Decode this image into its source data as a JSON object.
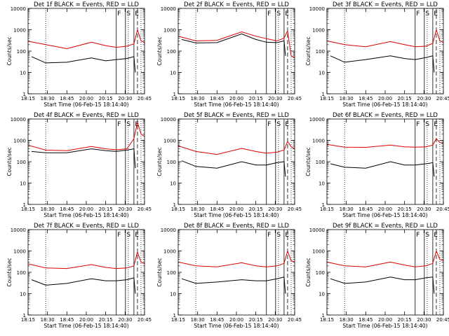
{
  "chart_data": {
    "type": "line",
    "layout": "3x3 grid",
    "xlabel": "Start Time (06-Feb-15 18:14:40)",
    "ylabel": "Counts/sec",
    "x_tick_labels": [
      "18:15",
      "18:30",
      "18:45",
      "20:00",
      "20:15",
      "20:30",
      "20:45"
    ],
    "y_tick_labels": [
      "1",
      "10",
      "100",
      "1000",
      "10000"
    ],
    "y_scale": "log",
    "ylim": [
      1,
      10000
    ],
    "xlim_min": [
      0,
      165
    ],
    "markers": {
      "solid_lines_min": [
        125,
        138,
        150
      ],
      "dotted_lines_min": [
        25,
        142,
        160
      ],
      "dashed_line_min": 155,
      "marker_labels": [
        "F",
        "S",
        "E"
      ]
    },
    "colors": {
      "events": "#000000",
      "lld": "#dd0000"
    },
    "panels": [
      {
        "title": "Det 1f BLACK = Events, RED = LLD",
        "series": [
          {
            "name": "Events",
            "color": "#000000",
            "values": [
              [
                5,
                55
              ],
              [
                25,
                28
              ],
              [
                55,
                30
              ],
              [
                90,
                48
              ],
              [
                110,
                35
              ],
              [
                125,
                40
              ],
              [
                140,
                45
              ],
              [
                150,
                55
              ],
              [
                152,
                10
              ]
            ]
          },
          {
            "name": "LLD",
            "color": "#dd0000",
            "values": [
              [
                0,
                290
              ],
              [
                25,
                200
              ],
              [
                55,
                130
              ],
              [
                90,
                260
              ],
              [
                110,
                180
              ],
              [
                125,
                150
              ],
              [
                140,
                170
              ],
              [
                150,
                220
              ],
              [
                155,
                1000
              ],
              [
                160,
                300
              ],
              [
                165,
                250
              ]
            ]
          }
        ]
      },
      {
        "title": "Det 2f BLACK = Events, RED = LLD",
        "series": [
          {
            "name": "Events",
            "color": "#000000",
            "values": [
              [
                5,
                350
              ],
              [
                25,
                240
              ],
              [
                55,
                250
              ],
              [
                90,
                640
              ],
              [
                110,
                350
              ],
              [
                125,
                260
              ],
              [
                140,
                250
              ],
              [
                150,
                300
              ],
              [
                152,
                60
              ]
            ]
          },
          {
            "name": "LLD",
            "color": "#dd0000",
            "values": [
              [
                0,
                500
              ],
              [
                25,
                300
              ],
              [
                55,
                320
              ],
              [
                90,
                800
              ],
              [
                110,
                500
              ],
              [
                125,
                380
              ],
              [
                140,
                300
              ],
              [
                150,
                400
              ],
              [
                155,
                900
              ],
              [
                160,
                60
              ],
              [
                165,
                50
              ]
            ]
          }
        ]
      },
      {
        "title": "Det 3f BLACK = Events, RED = LLD",
        "series": [
          {
            "name": "Events",
            "color": "#000000",
            "values": [
              [
                5,
                60
              ],
              [
                25,
                30
              ],
              [
                55,
                40
              ],
              [
                90,
                60
              ],
              [
                110,
                45
              ],
              [
                125,
                40
              ],
              [
                140,
                50
              ],
              [
                150,
                60
              ],
              [
                152,
                10
              ]
            ]
          },
          {
            "name": "LLD",
            "color": "#dd0000",
            "values": [
              [
                0,
                300
              ],
              [
                25,
                200
              ],
              [
                55,
                160
              ],
              [
                90,
                280
              ],
              [
                110,
                200
              ],
              [
                125,
                160
              ],
              [
                140,
                170
              ],
              [
                150,
                230
              ],
              [
                155,
                1000
              ],
              [
                160,
                300
              ],
              [
                165,
                250
              ]
            ]
          }
        ]
      },
      {
        "title": "Det 4f BLACK = Events, RED = LLD",
        "series": [
          {
            "name": "Events",
            "color": "#000000",
            "values": [
              [
                5,
                300
              ],
              [
                25,
                260
              ],
              [
                55,
                260
              ],
              [
                90,
                400
              ],
              [
                110,
                330
              ],
              [
                125,
                300
              ],
              [
                140,
                350
              ],
              [
                150,
                400
              ],
              [
                152,
                50
              ]
            ]
          },
          {
            "name": "LLD",
            "color": "#dd0000",
            "values": [
              [
                0,
                600
              ],
              [
                25,
                350
              ],
              [
                55,
                330
              ],
              [
                90,
                520
              ],
              [
                110,
                400
              ],
              [
                125,
                360
              ],
              [
                140,
                400
              ],
              [
                150,
                1200
              ],
              [
                155,
                7000
              ],
              [
                160,
                2000
              ],
              [
                165,
                1500
              ]
            ]
          }
        ]
      },
      {
        "title": "Det 5f BLACK = Events, RED = LLD",
        "series": [
          {
            "name": "Events",
            "color": "#000000",
            "values": [
              [
                5,
                110
              ],
              [
                25,
                60
              ],
              [
                55,
                50
              ],
              [
                90,
                100
              ],
              [
                110,
                70
              ],
              [
                125,
                70
              ],
              [
                140,
                90
              ],
              [
                150,
                100
              ],
              [
                152,
                20
              ]
            ]
          },
          {
            "name": "LLD",
            "color": "#dd0000",
            "values": [
              [
                0,
                550
              ],
              [
                25,
                300
              ],
              [
                55,
                220
              ],
              [
                90,
                420
              ],
              [
                110,
                300
              ],
              [
                125,
                250
              ],
              [
                140,
                280
              ],
              [
                150,
                350
              ],
              [
                155,
                900
              ],
              [
                160,
                500
              ],
              [
                165,
                400
              ]
            ]
          }
        ]
      },
      {
        "title": "Det 6f BLACK = Events, RED = LLD",
        "series": [
          {
            "name": "Events",
            "color": "#000000",
            "values": [
              [
                5,
                80
              ],
              [
                25,
                55
              ],
              [
                55,
                50
              ],
              [
                90,
                100
              ],
              [
                110,
                70
              ],
              [
                125,
                70
              ],
              [
                140,
                80
              ],
              [
                150,
                90
              ],
              [
                152,
                20
              ]
            ]
          },
          {
            "name": "LLD",
            "color": "#dd0000",
            "values": [
              [
                0,
                650
              ],
              [
                25,
                480
              ],
              [
                55,
                470
              ],
              [
                90,
                600
              ],
              [
                110,
                500
              ],
              [
                125,
                480
              ],
              [
                140,
                500
              ],
              [
                150,
                600
              ],
              [
                155,
                1200
              ],
              [
                160,
                800
              ],
              [
                165,
                700
              ]
            ]
          }
        ]
      },
      {
        "title": "Det 7f BLACK = Events, RED = LLD",
        "series": [
          {
            "name": "Events",
            "color": "#000000",
            "values": [
              [
                5,
                45
              ],
              [
                25,
                25
              ],
              [
                55,
                30
              ],
              [
                90,
                50
              ],
              [
                110,
                40
              ],
              [
                125,
                40
              ],
              [
                140,
                45
              ],
              [
                150,
                55
              ],
              [
                152,
                10
              ]
            ]
          },
          {
            "name": "LLD",
            "color": "#dd0000",
            "values": [
              [
                0,
                250
              ],
              [
                25,
                160
              ],
              [
                55,
                150
              ],
              [
                90,
                230
              ],
              [
                110,
                170
              ],
              [
                125,
                150
              ],
              [
                140,
                160
              ],
              [
                150,
                200
              ],
              [
                155,
                900
              ],
              [
                160,
                300
              ],
              [
                165,
                250
              ]
            ]
          }
        ]
      },
      {
        "title": "Det 8f BLACK = Events, RED = LLD",
        "series": [
          {
            "name": "Events",
            "color": "#000000",
            "values": [
              [
                5,
                50
              ],
              [
                25,
                30
              ],
              [
                55,
                35
              ],
              [
                90,
                45
              ],
              [
                110,
                40
              ],
              [
                125,
                40
              ],
              [
                140,
                50
              ],
              [
                150,
                60
              ],
              [
                152,
                10
              ]
            ]
          },
          {
            "name": "LLD",
            "color": "#dd0000",
            "values": [
              [
                0,
                300
              ],
              [
                25,
                200
              ],
              [
                55,
                180
              ],
              [
                90,
                280
              ],
              [
                110,
                200
              ],
              [
                125,
                180
              ],
              [
                140,
                200
              ],
              [
                150,
                260
              ],
              [
                155,
                1000
              ],
              [
                160,
                350
              ],
              [
                165,
                300
              ]
            ]
          }
        ]
      },
      {
        "title": "Det 9f BLACK = Events, RED = LLD",
        "series": [
          {
            "name": "Events",
            "color": "#000000",
            "values": [
              [
                5,
                50
              ],
              [
                25,
                30
              ],
              [
                55,
                35
              ],
              [
                90,
                60
              ],
              [
                110,
                45
              ],
              [
                125,
                45
              ],
              [
                140,
                55
              ],
              [
                150,
                60
              ],
              [
                152,
                10
              ]
            ]
          },
          {
            "name": "LLD",
            "color": "#dd0000",
            "values": [
              [
                0,
                300
              ],
              [
                25,
                200
              ],
              [
                55,
                180
              ],
              [
                90,
                300
              ],
              [
                110,
                220
              ],
              [
                125,
                180
              ],
              [
                140,
                200
              ],
              [
                150,
                260
              ],
              [
                155,
                1000
              ],
              [
                160,
                400
              ],
              [
                165,
                350
              ]
            ]
          }
        ]
      }
    ]
  }
}
